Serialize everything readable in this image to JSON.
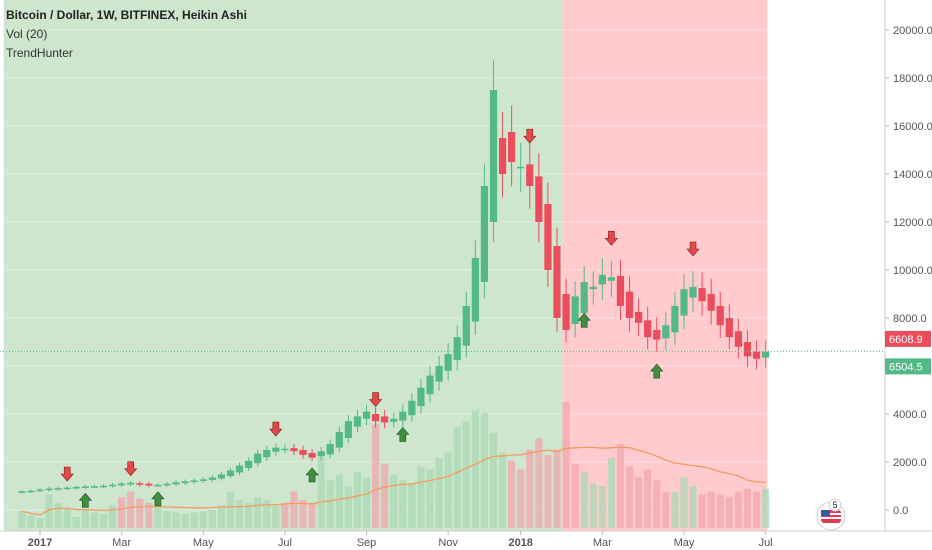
{
  "header": {
    "title": "Bitcoin / Dollar, 1W, BITFINEX, Heikin Ashi",
    "indicator_vol": "Vol (20)",
    "indicator_trend": "TrendHunter"
  },
  "colors": {
    "up": "#53b987",
    "down": "#eb4d5c",
    "bg_up": "#cde6cd",
    "bg_down": "#ffcbcf",
    "vol_up": "#a9d8b3",
    "vol_down": "#f2a6ad",
    "vol_ma": "#f39b64",
    "arrow_up": "#3f8f3f",
    "arrow_down": "#e34848",
    "axis_text": "#555555"
  },
  "price_labels": {
    "current": "6608.9",
    "close": "6504.5"
  },
  "badge_number": "5",
  "chart_data": {
    "type": "candlestick",
    "title": "Bitcoin / Dollar, 1W, BITFINEX, Heikin Ashi",
    "y_ticks": [
      "20000.0",
      "18000.0",
      "16000.0",
      "14000.0",
      "12000.0",
      "10000.0",
      "8000.0",
      "6000.0",
      "4000.0",
      "2000.0",
      "0.0"
    ],
    "ylim": [
      -400,
      21200
    ],
    "x_ticks": [
      {
        "label": "2017",
        "week": 2,
        "bold": true
      },
      {
        "label": "Mar",
        "week": 11
      },
      {
        "label": "May",
        "week": 20
      },
      {
        "label": "Jul",
        "week": 29
      },
      {
        "label": "Sep",
        "week": 38
      },
      {
        "label": "Nov",
        "week": 47
      },
      {
        "label": "2018",
        "week": 55,
        "bold": true
      },
      {
        "label": "Mar",
        "week": 64
      },
      {
        "label": "May",
        "week": 73
      },
      {
        "label": "Jul",
        "week": 82
      }
    ],
    "bg_regions": [
      {
        "state": "up",
        "from_week": -2,
        "to_week": 59.6
      },
      {
        "state": "down",
        "from_week": 59.6,
        "to_week": 82.2
      }
    ],
    "closes": [
      780,
      800,
      850,
      890,
      910,
      930,
      960,
      980,
      990,
      1010,
      1050,
      1100,
      1130,
      1060,
      1020,
      1050,
      1090,
      1150,
      1190,
      1230,
      1280,
      1350,
      1480,
      1650,
      1850,
      2050,
      2350,
      2500,
      2600,
      2550,
      2450,
      2300,
      2180,
      2450,
      2750,
      3250,
      3700,
      3900,
      4100,
      3700,
      3650,
      3800,
      4100,
      4550,
      5100,
      5600,
      6000,
      6500,
      7200,
      8500,
      10500,
      13500,
      17500,
      14000,
      14500,
      14300,
      13500,
      12000,
      10000,
      8000,
      7500,
      8900,
      9500,
      9300,
      9800,
      9700,
      8500,
      8000,
      7800,
      7200,
      7100,
      7700,
      8500,
      9200,
      9300,
      8700,
      8300,
      7700,
      7200,
      6800,
      6400,
      6300,
      6600
    ],
    "volume": [
      {
        "v": 600,
        "c": "up"
      },
      {
        "v": 450,
        "c": "up"
      },
      {
        "v": 350,
        "c": "up"
      },
      {
        "v": 1200,
        "c": "up"
      },
      {
        "v": 900,
        "c": "up"
      },
      {
        "v": 700,
        "c": "up"
      },
      {
        "v": 400,
        "c": "up"
      },
      {
        "v": 650,
        "c": "up"
      },
      {
        "v": 550,
        "c": "up"
      },
      {
        "v": 500,
        "c": "up"
      },
      {
        "v": 800,
        "c": "up"
      },
      {
        "v": 1100,
        "c": "down"
      },
      {
        "v": 1300,
        "c": "down"
      },
      {
        "v": 1050,
        "c": "down"
      },
      {
        "v": 900,
        "c": "down"
      },
      {
        "v": 750,
        "c": "up"
      },
      {
        "v": 600,
        "c": "up"
      },
      {
        "v": 550,
        "c": "up"
      },
      {
        "v": 500,
        "c": "up"
      },
      {
        "v": 550,
        "c": "up"
      },
      {
        "v": 600,
        "c": "up"
      },
      {
        "v": 650,
        "c": "up"
      },
      {
        "v": 800,
        "c": "up"
      },
      {
        "v": 1300,
        "c": "up"
      },
      {
        "v": 1000,
        "c": "up"
      },
      {
        "v": 900,
        "c": "up"
      },
      {
        "v": 1100,
        "c": "up"
      },
      {
        "v": 1000,
        "c": "up"
      },
      {
        "v": 800,
        "c": "up"
      },
      {
        "v": 900,
        "c": "down"
      },
      {
        "v": 1300,
        "c": "down"
      },
      {
        "v": 1000,
        "c": "down"
      },
      {
        "v": 900,
        "c": "down"
      },
      {
        "v": 2500,
        "c": "up"
      },
      {
        "v": 1700,
        "c": "up"
      },
      {
        "v": 1900,
        "c": "up"
      },
      {
        "v": 1500,
        "c": "up"
      },
      {
        "v": 2000,
        "c": "up"
      },
      {
        "v": 1800,
        "c": "up"
      },
      {
        "v": 3700,
        "c": "down"
      },
      {
        "v": 2300,
        "c": "down"
      },
      {
        "v": 1900,
        "c": "up"
      },
      {
        "v": 1700,
        "c": "up"
      },
      {
        "v": 1600,
        "c": "up"
      },
      {
        "v": 2200,
        "c": "up"
      },
      {
        "v": 2100,
        "c": "up"
      },
      {
        "v": 2500,
        "c": "up"
      },
      {
        "v": 2700,
        "c": "up"
      },
      {
        "v": 3600,
        "c": "up"
      },
      {
        "v": 3800,
        "c": "up"
      },
      {
        "v": 4200,
        "c": "up"
      },
      {
        "v": 4100,
        "c": "up"
      },
      {
        "v": 3400,
        "c": "up"
      },
      {
        "v": 2700,
        "c": "up"
      },
      {
        "v": 2400,
        "c": "down"
      },
      {
        "v": 2100,
        "c": "down"
      },
      {
        "v": 2800,
        "c": "down"
      },
      {
        "v": 3200,
        "c": "down"
      },
      {
        "v": 2600,
        "c": "down"
      },
      {
        "v": 2800,
        "c": "down"
      },
      {
        "v": 4500,
        "c": "down"
      },
      {
        "v": 2300,
        "c": "down"
      },
      {
        "v": 2000,
        "c": "up"
      },
      {
        "v": 1600,
        "c": "up"
      },
      {
        "v": 1500,
        "c": "up"
      },
      {
        "v": 2500,
        "c": "up"
      },
      {
        "v": 3000,
        "c": "down"
      },
      {
        "v": 2200,
        "c": "down"
      },
      {
        "v": 1800,
        "c": "down"
      },
      {
        "v": 2100,
        "c": "down"
      },
      {
        "v": 1700,
        "c": "down"
      },
      {
        "v": 1300,
        "c": "down"
      },
      {
        "v": 1300,
        "c": "up"
      },
      {
        "v": 1800,
        "c": "up"
      },
      {
        "v": 1500,
        "c": "up"
      },
      {
        "v": 1200,
        "c": "down"
      },
      {
        "v": 1300,
        "c": "down"
      },
      {
        "v": 1200,
        "c": "down"
      },
      {
        "v": 1100,
        "c": "down"
      },
      {
        "v": 1300,
        "c": "down"
      },
      {
        "v": 1400,
        "c": "down"
      },
      {
        "v": 1300,
        "c": "down"
      },
      {
        "v": 1400,
        "c": "up"
      }
    ],
    "signals": [
      {
        "week": 5,
        "dir": "down"
      },
      {
        "week": 7,
        "dir": "up"
      },
      {
        "week": 12,
        "dir": "down"
      },
      {
        "week": 15,
        "dir": "up"
      },
      {
        "week": 28,
        "dir": "down"
      },
      {
        "week": 32,
        "dir": "up"
      },
      {
        "week": 39,
        "dir": "down"
      },
      {
        "week": 42,
        "dir": "up"
      },
      {
        "week": 56,
        "dir": "down"
      },
      {
        "week": 62,
        "dir": "up"
      },
      {
        "week": 65,
        "dir": "down"
      },
      {
        "week": 70,
        "dir": "up"
      },
      {
        "week": 74,
        "dir": "down"
      }
    ]
  }
}
